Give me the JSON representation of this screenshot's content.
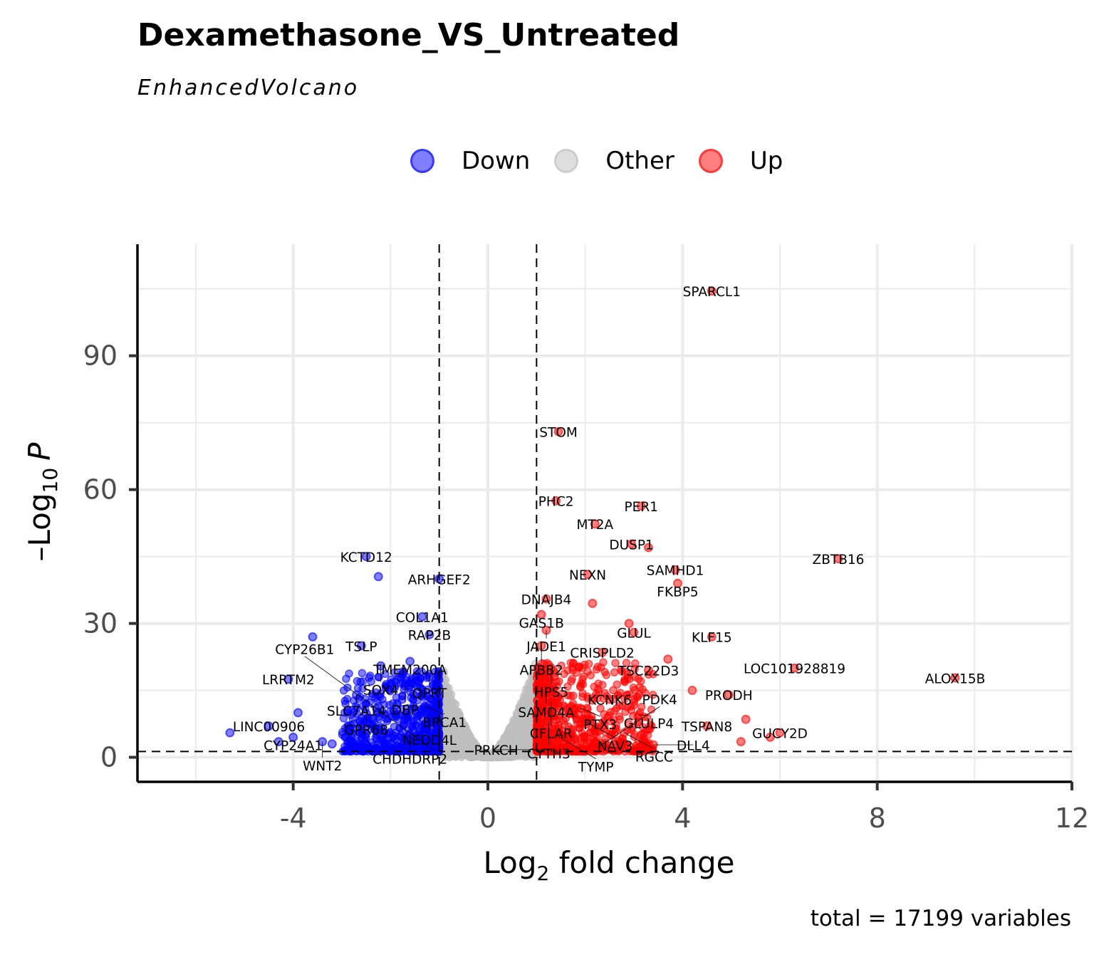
{
  "chart_data": {
    "type": "scatter",
    "title": "Dexamethasone_VS_Untreated",
    "subtitle": "EnhancedVolcano",
    "xlabel": "Log2 fold change",
    "xlabel_main": "Log",
    "xlabel_sub": "2",
    "xlabel_rest": " fold change",
    "ylabel": "-Log10 P",
    "ylabel_main": "–Log",
    "ylabel_sub": "10",
    "ylabel_rest": "P",
    "caption": "total = 17199 variables",
    "xlim": [
      -7.2,
      12
    ],
    "ylim": [
      -5.5,
      115
    ],
    "x_ticks": [
      -4,
      0,
      4,
      8,
      12
    ],
    "x_tick_labels": [
      "-4",
      "0",
      "4",
      "8",
      "12"
    ],
    "y_ticks": [
      0,
      30,
      60,
      90
    ],
    "y_tick_labels": [
      "0",
      "30",
      "60",
      "90"
    ],
    "fc_cutoff": 1,
    "p_cutoff_log10": 1.3,
    "grid": true,
    "legend_position": "top",
    "legend": [
      {
        "label": "Down",
        "color": "#0000ff"
      },
      {
        "label": "Other",
        "color": "#bebebe"
      },
      {
        "label": "Up",
        "color": "#ff0000"
      }
    ],
    "colors": {
      "Down": "#0000ff",
      "Other": "#bebebe",
      "Up": "#ff0000"
    },
    "labeled_points": [
      {
        "gene": "SPARCL1",
        "x": 4.6,
        "y": 104.5,
        "group": "Up"
      },
      {
        "gene": "STOM",
        "x": 1.45,
        "y": 73,
        "group": "Up"
      },
      {
        "gene": "PHC2",
        "x": 1.4,
        "y": 57.5,
        "group": "Up"
      },
      {
        "gene": "PER1",
        "x": 3.15,
        "y": 56.3,
        "group": "Up"
      },
      {
        "gene": "MT2A",
        "x": 2.2,
        "y": 52.3,
        "group": "Up"
      },
      {
        "gene": "DUSP1",
        "x": 2.95,
        "y": 47.8,
        "group": "Up"
      },
      {
        "gene": "ZBTB16",
        "x": 7.2,
        "y": 44.5,
        "group": "Up"
      },
      {
        "gene": "SAMHD1",
        "x": 3.85,
        "y": 42,
        "group": "Up"
      },
      {
        "gene": "NEXN",
        "x": 2.05,
        "y": 41,
        "group": "Up"
      },
      {
        "gene": "FKBP5",
        "x": 3.9,
        "y": 39,
        "group": "Up"
      },
      {
        "gene": "DNAJB4",
        "x": 1.2,
        "y": 35.5,
        "group": "Up"
      },
      {
        "gene": "GAS1B",
        "x": 1.1,
        "y": 32,
        "group": "Up"
      },
      {
        "gene": "JADE1",
        "x": 1.2,
        "y": 28.5,
        "group": "Up"
      },
      {
        "gene": "GLUL",
        "x": 3.0,
        "y": 28,
        "group": "Up"
      },
      {
        "gene": "KLF15",
        "x": 4.6,
        "y": 27,
        "group": "Up"
      },
      {
        "gene": "APBB2",
        "x": 1.1,
        "y": 25,
        "group": "Up"
      },
      {
        "gene": "CRISPLD2",
        "x": 2.35,
        "y": 23.5,
        "group": "Up"
      },
      {
        "gene": "HPS5",
        "x": 1.3,
        "y": 20,
        "group": "Up"
      },
      {
        "gene": "TSC22D3",
        "x": 3.3,
        "y": 19.5,
        "group": "Up"
      },
      {
        "gene": "LOC101928819",
        "x": 6.3,
        "y": 20,
        "group": "Up"
      },
      {
        "gene": "ALOX15B",
        "x": 9.6,
        "y": 17.8,
        "group": "Up"
      },
      {
        "gene": "SAMD4A",
        "x": 1.2,
        "y": 15.5,
        "group": "Up"
      },
      {
        "gene": "PRODH",
        "x": 4.95,
        "y": 14,
        "group": "Up"
      },
      {
        "gene": "KCNK6",
        "x": 2.5,
        "y": 13,
        "group": "Up"
      },
      {
        "gene": "CFLAR",
        "x": 1.3,
        "y": 12.5,
        "group": "Up"
      },
      {
        "gene": "PTX3",
        "x": 1.9,
        "y": 11,
        "group": "Up"
      },
      {
        "gene": "GLULP4",
        "x": 3.1,
        "y": 9.5,
        "group": "Up"
      },
      {
        "gene": "CYTH3",
        "x": 1.25,
        "y": 8,
        "group": "Up"
      },
      {
        "gene": "NAV3",
        "x": 2.0,
        "y": 8,
        "group": "Up"
      },
      {
        "gene": "TSPAN8",
        "x": 4.5,
        "y": 7,
        "group": "Up"
      },
      {
        "gene": "GUCY2D",
        "x": 6.0,
        "y": 5.5,
        "group": "Up"
      },
      {
        "gene": "RGCC",
        "x": 2.8,
        "y": 5.5,
        "group": "Up"
      },
      {
        "gene": "TYMP",
        "x": 1.4,
        "y": 5,
        "group": "Up"
      },
      {
        "gene": "DLL4",
        "x": 3.4,
        "y": 2.8,
        "group": "Up"
      },
      {
        "gene": "PDK4",
        "x": 2.3,
        "y": 2.5,
        "group": "Up"
      },
      {
        "gene": "PRKCH",
        "x": 1.4,
        "y": 1.7,
        "group": "Up"
      },
      {
        "gene": "KCTD12",
        "x": -2.5,
        "y": 45,
        "group": "Down"
      },
      {
        "gene": "ARHGEF2",
        "x": -1.0,
        "y": 40,
        "group": "Down"
      },
      {
        "gene": "COL1A1",
        "x": -1.35,
        "y": 31.5,
        "group": "Down"
      },
      {
        "gene": "RAP2B",
        "x": -1.2,
        "y": 27.5,
        "group": "Down"
      },
      {
        "gene": "TSLP",
        "x": -2.6,
        "y": 25,
        "group": "Down"
      },
      {
        "gene": "TMEM200A",
        "x": -1.6,
        "y": 21.5,
        "group": "Down"
      },
      {
        "gene": "SOX4",
        "x": -2.2,
        "y": 20.5,
        "group": "Down"
      },
      {
        "gene": "QPRT",
        "x": -1.2,
        "y": 18,
        "group": "Down"
      },
      {
        "gene": "LRRTM2",
        "x": -4.1,
        "y": 17.5,
        "group": "Down"
      },
      {
        "gene": "DBP",
        "x": -1.7,
        "y": 16,
        "group": "Down"
      },
      {
        "gene": "SLC7A14",
        "x": -2.7,
        "y": 14,
        "group": "Down"
      },
      {
        "gene": "BRCA1",
        "x": -1.3,
        "y": 11.5,
        "group": "Down"
      },
      {
        "gene": "GPR68",
        "x": -2.5,
        "y": 9.8,
        "group": "Down"
      },
      {
        "gene": "NEDD4L",
        "x": -1.2,
        "y": 7.5,
        "group": "Down"
      },
      {
        "gene": "LINC00906",
        "x": -4.5,
        "y": 7,
        "group": "Down"
      },
      {
        "gene": "CHDHDRP2",
        "x": -1.6,
        "y": 5,
        "group": "Down"
      },
      {
        "gene": "CYP24A1",
        "x": -4.0,
        "y": 4.5,
        "group": "Down"
      },
      {
        "gene": "WNT2",
        "x": -3.4,
        "y": 3.5,
        "group": "Down"
      },
      {
        "gene": "CYP26B1",
        "x": -1.1,
        "y": 1.5,
        "group": "Down"
      }
    ],
    "extra_points": [
      {
        "x": -5.3,
        "y": 5.5,
        "group": "Down"
      },
      {
        "x": -3.6,
        "y": 27,
        "group": "Down"
      },
      {
        "x": -2.25,
        "y": 40.5,
        "group": "Down"
      },
      {
        "x": -3.9,
        "y": 10,
        "group": "Down"
      },
      {
        "x": -3.2,
        "y": 3,
        "group": "Down"
      },
      {
        "x": -4.3,
        "y": 3.5,
        "group": "Down"
      },
      {
        "x": 2.15,
        "y": 34.5,
        "group": "Up"
      },
      {
        "x": 3.3,
        "y": 47,
        "group": "Up"
      },
      {
        "x": 2.9,
        "y": 30,
        "group": "Up"
      },
      {
        "x": 5.3,
        "y": 8.5,
        "group": "Up"
      },
      {
        "x": 5.8,
        "y": 4.5,
        "group": "Up"
      },
      {
        "x": 5.2,
        "y": 3.5,
        "group": "Up"
      },
      {
        "x": 4.2,
        "y": 15,
        "group": "Up"
      },
      {
        "x": 3.7,
        "y": 22,
        "group": "Up"
      }
    ]
  }
}
